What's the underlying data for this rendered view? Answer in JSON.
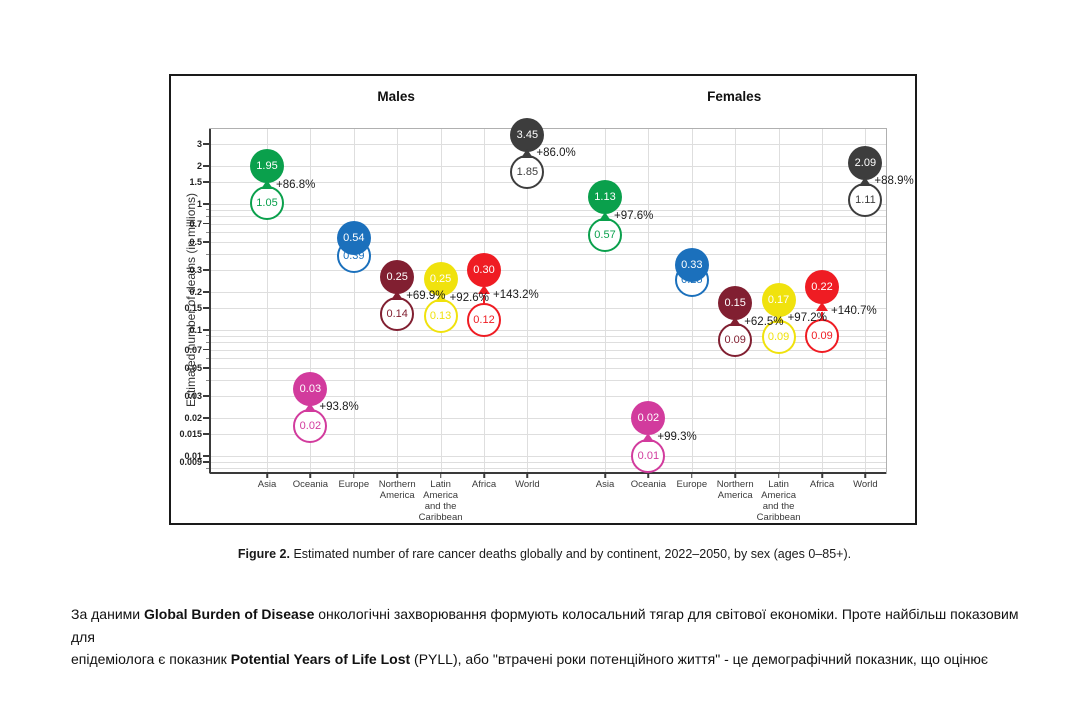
{
  "caption": {
    "label": "Figure 2.",
    "text": " Estimated number of rare cancer deaths globally and by continent, 2022–2050, by sex (ages 0–85+)."
  },
  "paragraph": {
    "lines": [
      [
        {
          "text": "За даними ",
          "bold": false
        },
        {
          "text": "Global Burden of Disease",
          "bold": true
        },
        {
          "text": " онкологічні захворювання формують колосальний тягар для світової економіки. Проте найбільш показовим для",
          "bold": false
        }
      ],
      [
        {
          "text": "епідеміолога є показник ",
          "bold": false
        },
        {
          "text": "Potential Years of Life Lost",
          "bold": true
        },
        {
          "text": " (PYLL), або \"втрачені роки потенційного життя\" - це демографічний показник, що оцінює",
          "bold": false
        }
      ]
    ]
  },
  "chart_data": {
    "type": "scatter",
    "subtype": "dumbbell-bubble",
    "title": "",
    "xlabel": "",
    "ylabel": "Estimated number of deaths (in millions)",
    "y_scale": "log",
    "y_domain": [
      0.00734,
      3.95
    ],
    "y_ticks": [
      "3",
      "2",
      "1.5",
      "1",
      "0.7",
      "0.5",
      "0.3",
      "0.2",
      "0.15",
      "0.1",
      "0.07",
      "0.05",
      "0.03",
      "0.02",
      "0.015",
      "0.01",
      "0.009"
    ],
    "grid": "on",
    "legend": "none",
    "panels": [
      {
        "title": "Males",
        "points": [
          {
            "category": "Asia",
            "lines": [
              "Asia"
            ],
            "color": "#0aa04c",
            "value_2022": 1.05,
            "value_2050": 1.95,
            "change": "+86.8%"
          },
          {
            "category": "Oceania",
            "lines": [
              "Oceania"
            ],
            "color": "#d23b9d",
            "value_2022": 0.02,
            "value_2050": 0.03,
            "change": "+93.8%"
          },
          {
            "category": "Europe",
            "lines": [
              "Europe"
            ],
            "color": "#1b70bc",
            "value_2022": 0.39,
            "value_2050": 0.54,
            "change": null
          },
          {
            "category": "Northern America",
            "lines": [
              "Northern",
              "America"
            ],
            "color": "#811f31",
            "value_2022": 0.14,
            "value_2050": 0.25,
            "change": "+69.9%"
          },
          {
            "category": "Latin America and the Caribbean",
            "lines": [
              "Latin",
              "America",
              "and the",
              "Caribbean"
            ],
            "color": "#f0e20d",
            "value_2022": 0.13,
            "value_2050": 0.25,
            "change": "+92.6%"
          },
          {
            "category": "Africa",
            "lines": [
              "Africa"
            ],
            "color": "#ef1c23",
            "value_2022": 0.12,
            "value_2050": 0.3,
            "change": "+143.2%"
          },
          {
            "category": "World",
            "lines": [
              "World"
            ],
            "color": "#3d3d3d",
            "value_2022": 1.85,
            "value_2050": 3.45,
            "change": "+86.0%"
          }
        ]
      },
      {
        "title": "Females",
        "points": [
          {
            "category": "Asia",
            "lines": [
              "Asia"
            ],
            "color": "#0aa04c",
            "value_2022": 0.57,
            "value_2050": 1.13,
            "change": "+97.6%"
          },
          {
            "category": "Oceania",
            "lines": [
              "Oceania"
            ],
            "color": "#d23b9d",
            "value_2022": 0.01,
            "value_2050": 0.02,
            "change": "+99.3%"
          },
          {
            "category": "Europe",
            "lines": [
              "Europe"
            ],
            "color": "#1b70bc",
            "value_2022": 0.25,
            "value_2050": 0.33,
            "change": null
          },
          {
            "category": "Northern America",
            "lines": [
              "Northern",
              "America"
            ],
            "color": "#811f31",
            "value_2022": 0.09,
            "value_2050": 0.15,
            "change": "+62.5%"
          },
          {
            "category": "Latin America and the Caribbean",
            "lines": [
              "Latin",
              "America",
              "and the",
              "Caribbean"
            ],
            "color": "#f0e20d",
            "value_2022": 0.09,
            "value_2050": 0.17,
            "change": "+97.2%"
          },
          {
            "category": "Africa",
            "lines": [
              "Africa"
            ],
            "color": "#ef1c23",
            "value_2022": 0.09,
            "value_2050": 0.22,
            "change": "+140.7%"
          },
          {
            "category": "World",
            "lines": [
              "World"
            ],
            "color": "#3d3d3d",
            "value_2022": 1.11,
            "value_2050": 2.09,
            "change": "+88.9%"
          }
        ]
      }
    ]
  }
}
